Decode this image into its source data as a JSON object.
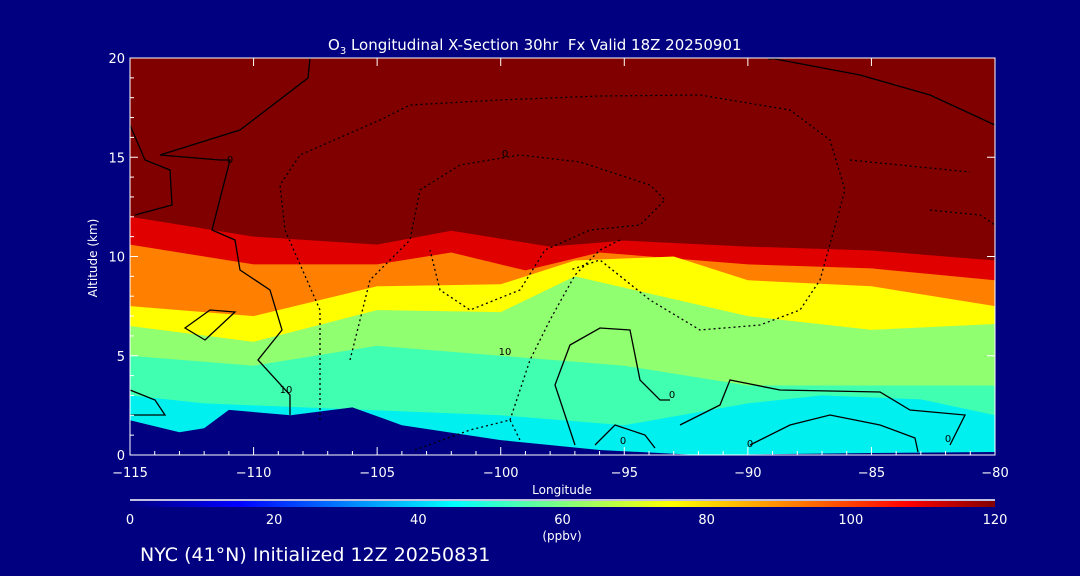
{
  "chart_data": {
    "type": "heatmap",
    "title_main": "O",
    "title_sub": "3",
    "title_rest": " Longitudinal X-Section 30hr  Fx Valid 18Z 20250901",
    "xlabel": "Longitude",
    "ylabel": "Altitude (km)",
    "xlim": [
      -115,
      -80
    ],
    "ylim": [
      0,
      20
    ],
    "xticks": [
      -115,
      -110,
      -105,
      -100,
      -95,
      -90,
      -85,
      -80
    ],
    "xtick_labels": [
      "−115",
      "−110",
      "−105",
      "−100",
      "−95",
      "−90",
      "−85",
      "−80"
    ],
    "yticks": [
      0,
      5,
      10,
      15,
      20
    ],
    "ytick_labels": [
      "0",
      "5",
      "10",
      "15",
      "20"
    ],
    "colorbar": {
      "label": "(ppbv)",
      "min": 0,
      "max": 120,
      "ticks": [
        "0",
        "20",
        "40",
        "60",
        "80",
        "100",
        "120"
      ],
      "colors": [
        "#000080",
        "#0000ff",
        "#00ffff",
        "#80ff80",
        "#ffff00",
        "#ff8000",
        "#ff0000",
        "#800000"
      ]
    },
    "layers": [
      {
        "value": 105,
        "color": "#e00000",
        "top": [
          [
            -115,
            12
          ],
          [
            -110,
            11
          ],
          [
            -105,
            10.6
          ],
          [
            -102,
            11.3
          ],
          [
            -98,
            10.5
          ],
          [
            -95,
            10.8
          ],
          [
            -90,
            10.5
          ],
          [
            -85,
            10.3
          ],
          [
            -80,
            9.8
          ]
        ]
      },
      {
        "value": 90,
        "color": "#ff8000",
        "top": [
          [
            -115,
            10.6
          ],
          [
            -110,
            9.6
          ],
          [
            -105,
            9.6
          ],
          [
            -102,
            10.2
          ],
          [
            -99,
            9.3
          ],
          [
            -96,
            10.2
          ],
          [
            -90,
            9.6
          ],
          [
            -85,
            9.4
          ],
          [
            -80,
            8.8
          ]
        ]
      },
      {
        "value": 78,
        "color": "#ffff00",
        "top": [
          [
            -115,
            7.5
          ],
          [
            -110,
            7
          ],
          [
            -105,
            8.5
          ],
          [
            -100,
            8.6
          ],
          [
            -97,
            9.8
          ],
          [
            -93,
            10
          ],
          [
            -90,
            8.8
          ],
          [
            -85,
            8.5
          ],
          [
            -80,
            7.5
          ]
        ]
      },
      {
        "value": 62,
        "color": "#90ff70",
        "top": [
          [
            -115,
            6.5
          ],
          [
            -110,
            5.7
          ],
          [
            -105,
            7.3
          ],
          [
            -100,
            7.2
          ],
          [
            -97,
            9
          ],
          [
            -90,
            7
          ],
          [
            -85,
            6.3
          ],
          [
            -80,
            6.6
          ]
        ]
      },
      {
        "value": 52,
        "color": "#40ffb0",
        "top": [
          [
            -115,
            5
          ],
          [
            -110,
            4.5
          ],
          [
            -105,
            5.5
          ],
          [
            -100,
            5
          ],
          [
            -95,
            4.5
          ],
          [
            -90,
            3.5
          ],
          [
            -85,
            3.5
          ],
          [
            -80,
            3.5
          ]
        ]
      },
      {
        "value": 45,
        "color": "#00f0f0",
        "top": [
          [
            -115,
            3
          ],
          [
            -112,
            2.6
          ],
          [
            -108,
            2.4
          ],
          [
            -100,
            2
          ],
          [
            -95,
            1.5
          ],
          [
            -90,
            2.6
          ],
          [
            -87,
            3
          ],
          [
            -83,
            2.8
          ],
          [
            -80,
            2
          ]
        ]
      }
    ],
    "terrain": [
      [
        -115,
        1.75
      ],
      [
        -113,
        1.15
      ],
      [
        -112,
        1.35
      ],
      [
        -111,
        2.27
      ],
      [
        -108.5,
        2
      ],
      [
        -106,
        2.4
      ],
      [
        -104,
        1.5
      ],
      [
        -100,
        0.75
      ],
      [
        -96,
        0.25
      ],
      [
        -92,
        0
      ],
      [
        -85,
        0.1
      ],
      [
        -80,
        0.15
      ]
    ],
    "contour_labels": [
      "0",
      "0",
      "10",
      "10",
      "0",
      "0",
      "0",
      "0",
      "0"
    ]
  },
  "footer": "NYC (41°N) Initialized 12Z 20250831"
}
